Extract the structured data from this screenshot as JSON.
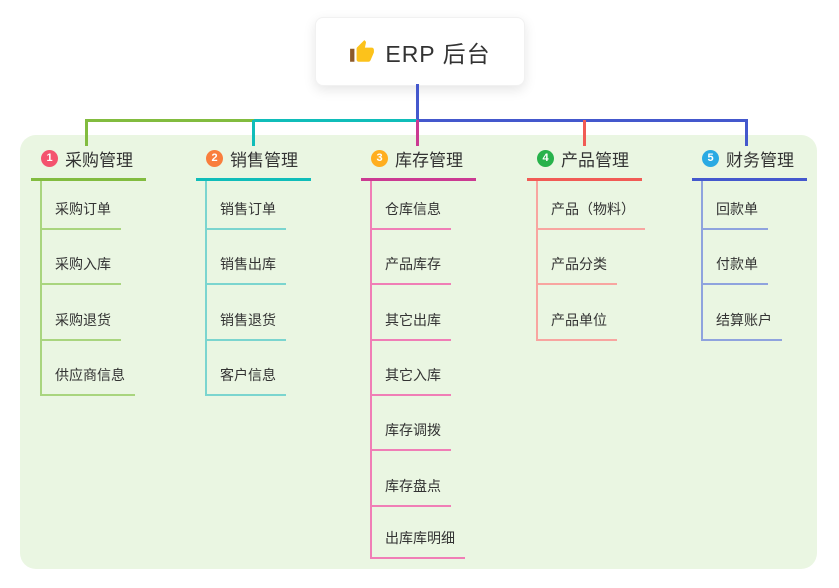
{
  "root": {
    "label": "ERP 后台",
    "icon": "thumbs-up-icon"
  },
  "colors": {
    "panel_bg": "#EAF6E2",
    "root_line": "#4458CD",
    "text": "#333333",
    "root_card_bg": "#FFFFFF",
    "thumb_yellow": "#FCC21B",
    "thumb_cuff": "#8C5A2B"
  },
  "branches": [
    {
      "index": "1",
      "title": "采购管理",
      "badge_color": "#F4536E",
      "line_color": "#82BC3F",
      "child_line_color": "#A9D57E",
      "children": [
        "采购订单",
        "采购入库",
        "采购退货",
        "供应商信息"
      ]
    },
    {
      "index": "2",
      "title": "销售管理",
      "badge_color": "#F97E3D",
      "line_color": "#10BDB9",
      "child_line_color": "#7BD5CF",
      "children": [
        "销售订单",
        "销售出库",
        "销售退货",
        "客户信息"
      ]
    },
    {
      "index": "3",
      "title": "库存管理",
      "badge_color": "#FFAE1F",
      "line_color": "#CB3A92",
      "child_line_color": "#F07EB6",
      "children": [
        "仓库信息",
        "产品库存",
        "其它出库",
        "其它入库",
        "库存调拨",
        "库存盘点",
        "出库库明细"
      ]
    },
    {
      "index": "4",
      "title": "产品管理",
      "badge_color": "#28B24B",
      "line_color": "#F15B55",
      "child_line_color": "#F8A5A0",
      "children": [
        "产品（物料）",
        "产品分类",
        "产品单位"
      ]
    },
    {
      "index": "5",
      "title": "财务管理",
      "badge_color": "#2AAAE3",
      "line_color": "#4458CD",
      "child_line_color": "#8FA3DE",
      "children": [
        "回款单",
        "付款单",
        "结算账户"
      ]
    }
  ]
}
